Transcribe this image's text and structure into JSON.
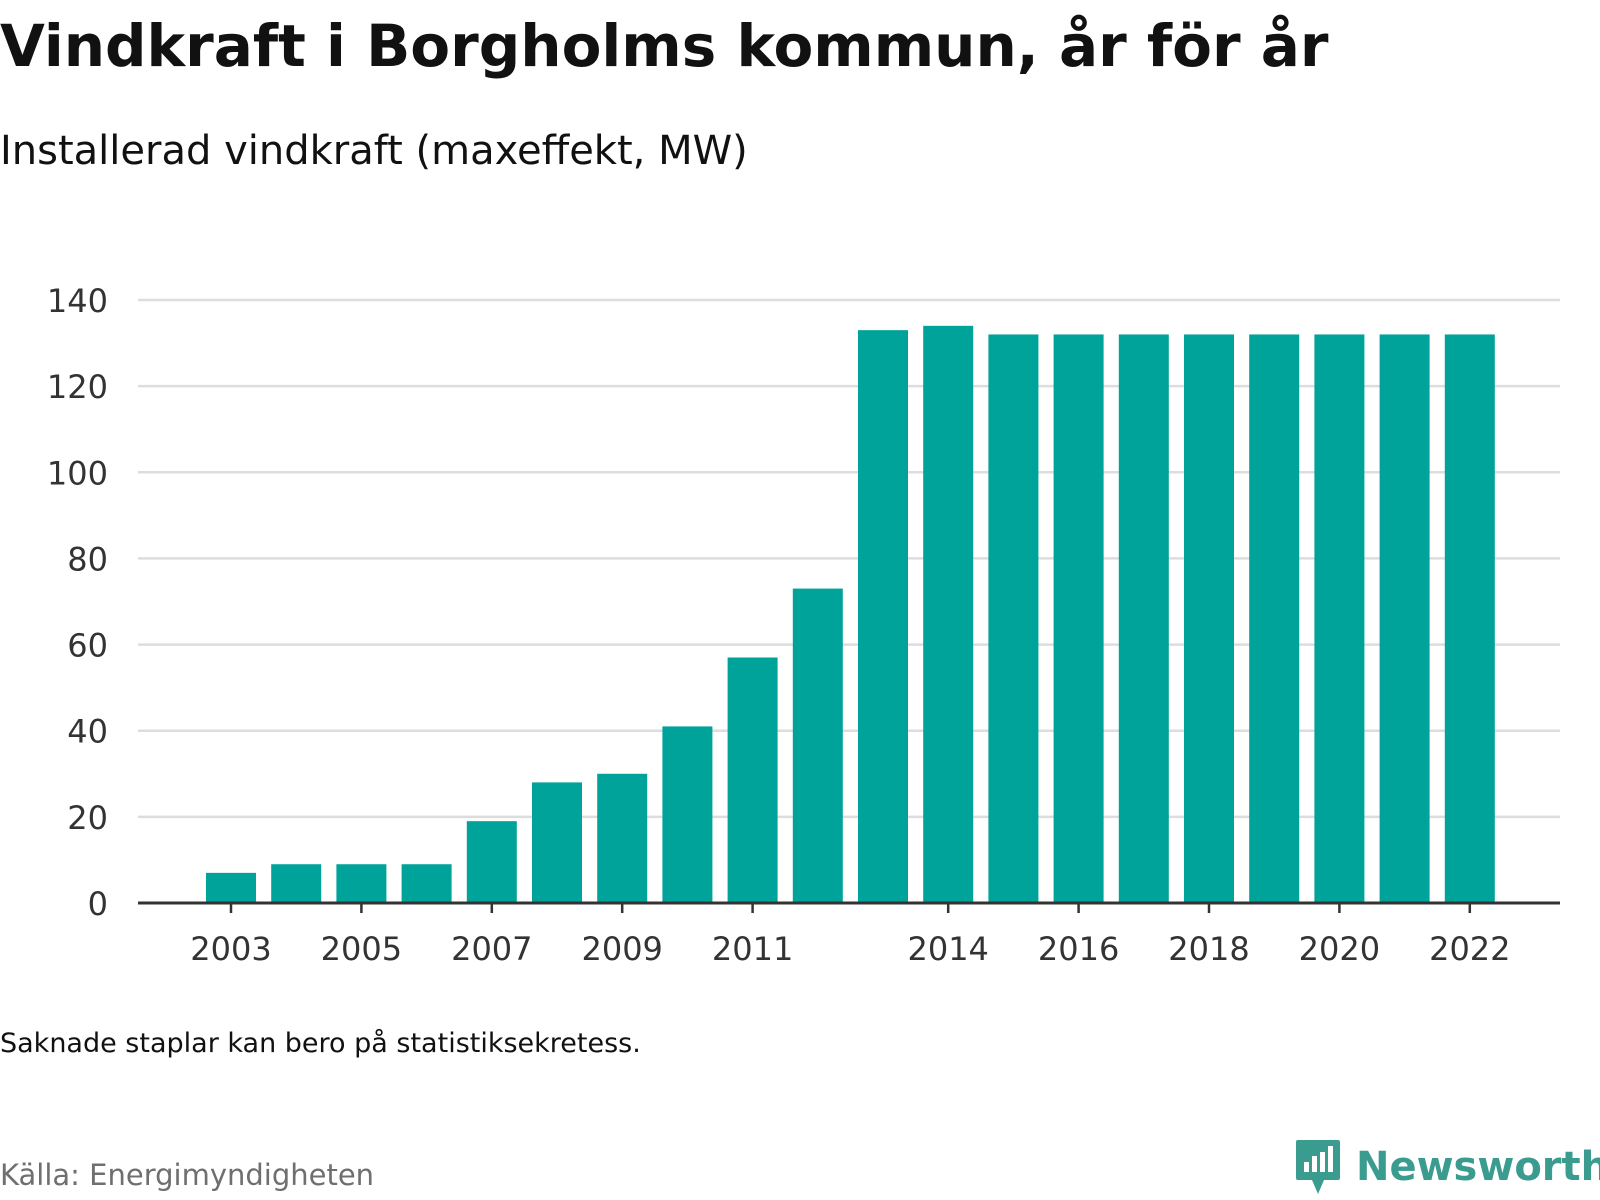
{
  "title": "Vindkraft i Borgholms kommun, år för år",
  "subtitle": "Installerad vindkraft (maxeffekt, MW)",
  "note": "Saknade staplar kan bero på statistiksekretess.",
  "source": "Källa: Energimyndigheten",
  "brand": {
    "name": "Newsworthy",
    "icon": "newsworthy-logo-icon"
  },
  "colors": {
    "bar": "#00a39a",
    "grid": "#dddddd",
    "axis": "#333333",
    "tick_text": "#333333",
    "brand": "#3a9b8f"
  },
  "chart_data": {
    "type": "bar",
    "categories": [
      "2003",
      "2004",
      "2005",
      "2006",
      "2007",
      "2008",
      "2009",
      "2010",
      "2011",
      "2012",
      "2013",
      "2014",
      "2015",
      "2016",
      "2017",
      "2018",
      "2019",
      "2020",
      "2021",
      "2022"
    ],
    "series": [
      {
        "values": [
          7,
          9,
          9,
          9,
          19,
          28,
          30,
          41,
          57,
          73,
          133,
          134,
          132,
          132,
          132,
          132,
          132,
          132,
          132,
          132
        ]
      }
    ],
    "x_tick_labels": [
      "2003",
      "2005",
      "2007",
      "2009",
      "2011",
      "2014",
      "2016",
      "2018",
      "2020",
      "2022"
    ],
    "ylim": [
      0,
      140
    ],
    "y_ticks": [
      0,
      20,
      40,
      60,
      80,
      100,
      120,
      140
    ],
    "grid": true,
    "xlabel": "",
    "ylabel": ""
  }
}
